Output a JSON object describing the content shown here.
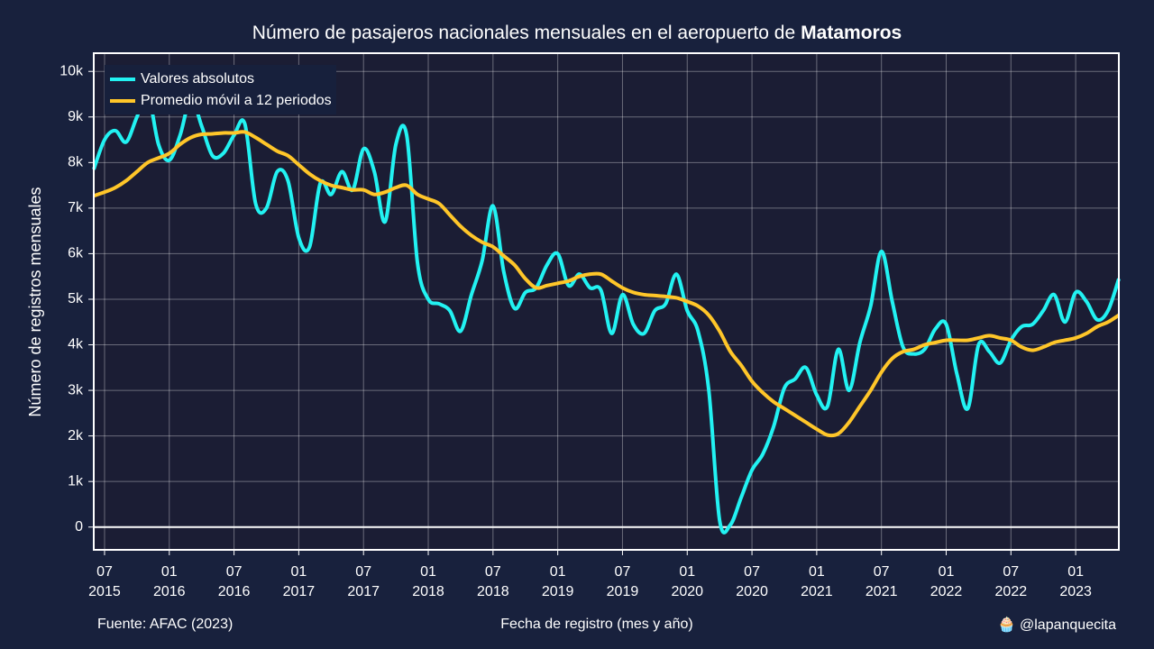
{
  "chart_data": {
    "type": "line",
    "title": [
      "Número de pasajeros nacionales mensuales en el aeropuerto de",
      "Matamoros"
    ],
    "xlabel": "Fecha de registro (mes y año)",
    "ylabel": "Número de registros mensuales",
    "source": "Fuente: AFAC (2023)",
    "credit": "🧁 @lapanquecita",
    "x": [
      "2015-06",
      "2015-07",
      "2015-08",
      "2015-09",
      "2015-10",
      "2015-11",
      "2015-12",
      "2016-01",
      "2016-02",
      "2016-03",
      "2016-04",
      "2016-05",
      "2016-06",
      "2016-07",
      "2016-08",
      "2016-09",
      "2016-10",
      "2016-11",
      "2016-12",
      "2017-01",
      "2017-02",
      "2017-03",
      "2017-04",
      "2017-05",
      "2017-06",
      "2017-07",
      "2017-08",
      "2017-09",
      "2017-10",
      "2017-11",
      "2017-12",
      "2018-01",
      "2018-02",
      "2018-03",
      "2018-04",
      "2018-05",
      "2018-06",
      "2018-07",
      "2018-08",
      "2018-09",
      "2018-10",
      "2018-11",
      "2018-12",
      "2019-01",
      "2019-02",
      "2019-03",
      "2019-04",
      "2019-05",
      "2019-06",
      "2019-07",
      "2019-08",
      "2019-09",
      "2019-10",
      "2019-11",
      "2019-12",
      "2020-01",
      "2020-02",
      "2020-03",
      "2020-04",
      "2020-05",
      "2020-06",
      "2020-07",
      "2020-08",
      "2020-09",
      "2020-10",
      "2020-11",
      "2020-12",
      "2021-01",
      "2021-02",
      "2021-03",
      "2021-04",
      "2021-05",
      "2021-06",
      "2021-07",
      "2021-08",
      "2021-09",
      "2021-10",
      "2021-11",
      "2021-12",
      "2022-01",
      "2022-02",
      "2022-03",
      "2022-04",
      "2022-05",
      "2022-06",
      "2022-07",
      "2022-08",
      "2022-09",
      "2022-10",
      "2022-11",
      "2022-12",
      "2023-01",
      "2023-02",
      "2023-03",
      "2023-04",
      "2023-05"
    ],
    "series": [
      {
        "name": "Valores absolutos",
        "color": "#22f2f2",
        "values": [
          7850,
          8500,
          8700,
          8450,
          9000,
          9500,
          8400,
          8050,
          8600,
          9400,
          8800,
          8150,
          8200,
          8600,
          8850,
          7100,
          7000,
          7800,
          7600,
          6350,
          6150,
          7550,
          7300,
          7800,
          7400,
          8300,
          7800,
          6700,
          8400,
          8600,
          5800,
          5000,
          4900,
          4750,
          4300,
          5100,
          5850,
          7050,
          5600,
          4800,
          5150,
          5250,
          5750,
          6000,
          5300,
          5550,
          5250,
          5200,
          4250,
          5100,
          4450,
          4250,
          4750,
          4900,
          5550,
          4750,
          4300,
          3000,
          150,
          50,
          650,
          1250,
          1600,
          2200,
          3050,
          3250,
          3500,
          2900,
          2650,
          3900,
          3000,
          4050,
          4850,
          6050,
          4950,
          3950,
          3800,
          3900,
          4350,
          4450,
          3350,
          2600,
          4000,
          3850,
          3600,
          4100,
          4400,
          4450,
          4750,
          5100,
          4500,
          5150,
          4950,
          4550,
          4750,
          5450
        ]
      },
      {
        "name": "Promedio móvil a 12 periodos",
        "color": "#ffc629",
        "values": [
          7270,
          7350,
          7450,
          7600,
          7800,
          8000,
          8100,
          8200,
          8400,
          8550,
          8620,
          8630,
          8650,
          8650,
          8670,
          8550,
          8400,
          8250,
          8150,
          7950,
          7750,
          7600,
          7500,
          7450,
          7400,
          7400,
          7300,
          7350,
          7450,
          7500,
          7300,
          7200,
          7100,
          6850,
          6600,
          6400,
          6250,
          6150,
          5950,
          5750,
          5450,
          5250,
          5300,
          5350,
          5400,
          5500,
          5550,
          5550,
          5400,
          5250,
          5150,
          5100,
          5080,
          5060,
          5030,
          4950,
          4850,
          4650,
          4300,
          3850,
          3550,
          3200,
          2950,
          2750,
          2600,
          2450,
          2300,
          2150,
          2020,
          2050,
          2300,
          2650,
          3000,
          3400,
          3700,
          3850,
          3900,
          4000,
          4050,
          4100,
          4100,
          4100,
          4150,
          4200,
          4150,
          4100,
          3950,
          3880,
          3950,
          4050,
          4100,
          4150,
          4250,
          4400,
          4500,
          4650
        ]
      }
    ],
    "xlim": [
      "2015-06",
      "2023-05"
    ],
    "xticks": [
      {
        "value": "2015-07",
        "label": [
          "07",
          "2015"
        ]
      },
      {
        "value": "2016-01",
        "label": [
          "01",
          "2016"
        ]
      },
      {
        "value": "2016-07",
        "label": [
          "07",
          "2016"
        ]
      },
      {
        "value": "2017-01",
        "label": [
          "01",
          "2017"
        ]
      },
      {
        "value": "2017-07",
        "label": [
          "07",
          "2017"
        ]
      },
      {
        "value": "2018-01",
        "label": [
          "01",
          "2018"
        ]
      },
      {
        "value": "2018-07",
        "label": [
          "07",
          "2018"
        ]
      },
      {
        "value": "2019-01",
        "label": [
          "01",
          "2019"
        ]
      },
      {
        "value": "2019-07",
        "label": [
          "07",
          "2019"
        ]
      },
      {
        "value": "2020-01",
        "label": [
          "01",
          "2020"
        ]
      },
      {
        "value": "2020-07",
        "label": [
          "07",
          "2020"
        ]
      },
      {
        "value": "2021-01",
        "label": [
          "01",
          "2021"
        ]
      },
      {
        "value": "2021-07",
        "label": [
          "07",
          "2021"
        ]
      },
      {
        "value": "2022-01",
        "label": [
          "01",
          "2022"
        ]
      },
      {
        "value": "2022-07",
        "label": [
          "07",
          "2022"
        ]
      },
      {
        "value": "2023-01",
        "label": [
          "01",
          "2023"
        ]
      }
    ],
    "ylim": [
      -500,
      10400
    ],
    "yticks": [
      0,
      {
        "value": 1000,
        "label": "1k"
      },
      {
        "value": 2000,
        "label": "2k"
      },
      {
        "value": 3000,
        "label": "3k"
      },
      {
        "value": 4000,
        "label": "4k"
      },
      {
        "value": 5000,
        "label": "5k"
      },
      {
        "value": 6000,
        "label": "6k"
      },
      {
        "value": 7000,
        "label": "7k"
      },
      {
        "value": 8000,
        "label": "8k"
      },
      {
        "value": 9000,
        "label": "9k"
      },
      {
        "value": 10000,
        "label": "10k"
      }
    ],
    "grid": true,
    "legend": "top-left"
  }
}
